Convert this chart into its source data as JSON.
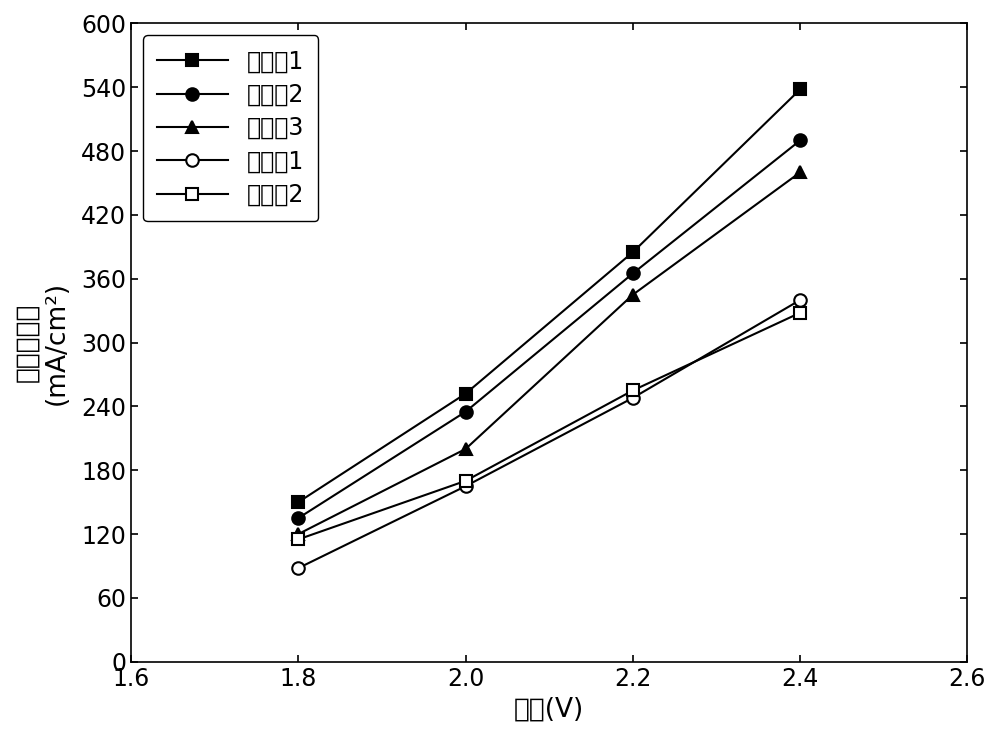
{
  "x": [
    1.8,
    2.0,
    2.2,
    2.4
  ],
  "series": [
    {
      "label": "实施奡1",
      "y": [
        150,
        252,
        385,
        538
      ],
      "marker": "s",
      "fillstyle": "full",
      "color": "#000000",
      "linestyle": "-"
    },
    {
      "label": "实施奡2",
      "y": [
        135,
        235,
        365,
        490
      ],
      "marker": "o",
      "fillstyle": "full",
      "color": "#000000",
      "linestyle": "-"
    },
    {
      "label": "实施奡3",
      "y": [
        120,
        200,
        345,
        460
      ],
      "marker": "^",
      "fillstyle": "full",
      "color": "#000000",
      "linestyle": "-"
    },
    {
      "label": "对比奡1",
      "y": [
        88,
        165,
        248,
        340
      ],
      "marker": "o",
      "fillstyle": "none",
      "color": "#000000",
      "linestyle": "-"
    },
    {
      "label": "对比奡2",
      "y": [
        115,
        170,
        255,
        328
      ],
      "marker": "s",
      "fillstyle": "none",
      "color": "#000000",
      "linestyle": "-"
    }
  ],
  "xlabel": "电压(V)",
  "ylabel_line1": "总电流密度",
  "ylabel_line2": "(mA/cm²)",
  "xlim": [
    1.6,
    2.6
  ],
  "ylim": [
    0,
    600
  ],
  "xticks": [
    1.6,
    1.8,
    2.0,
    2.2,
    2.4,
    2.6
  ],
  "yticks": [
    0,
    60,
    120,
    180,
    240,
    300,
    360,
    420,
    480,
    540,
    600
  ],
  "background_color": "#ffffff",
  "markersize": 9,
  "linewidth": 1.5
}
